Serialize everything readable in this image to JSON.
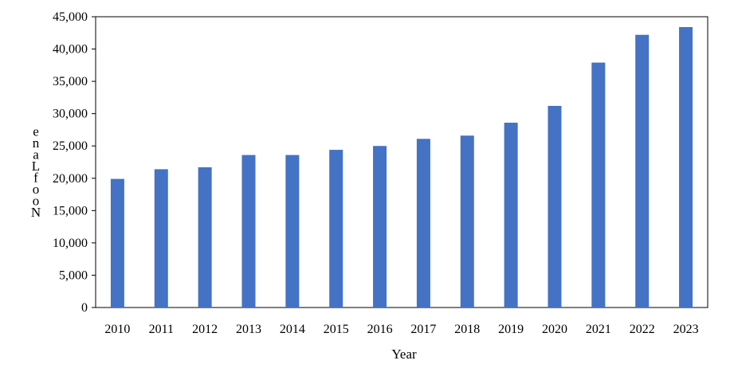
{
  "chart_data": {
    "type": "bar",
    "title": "",
    "xlabel": "Year",
    "ylabel": "No of Lane",
    "categories": [
      "2010",
      "2011",
      "2012",
      "2013",
      "2014",
      "2015",
      "2016",
      "2017",
      "2018",
      "2019",
      "2020",
      "2021",
      "2022",
      "2023"
    ],
    "values": [
      19900,
      21400,
      21700,
      23600,
      23600,
      24400,
      25000,
      26100,
      26600,
      28600,
      31200,
      37900,
      42200,
      43400
    ],
    "ylim": [
      0,
      45000
    ],
    "yticks": [
      0,
      5000,
      10000,
      15000,
      20000,
      25000,
      30000,
      35000,
      40000,
      45000
    ],
    "ytick_labels": [
      "0",
      "5,000",
      "10,000",
      "15,000",
      "20,000",
      "25,000",
      "30,000",
      "35,000",
      "40,000",
      "45,000"
    ],
    "bar_color": "#4472C4",
    "grid": false,
    "legend": "none"
  }
}
